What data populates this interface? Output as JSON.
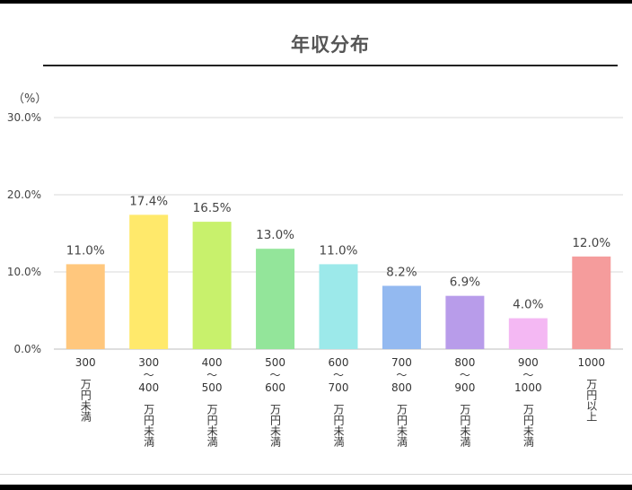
{
  "title": "年収分布",
  "unit_label": "（%）",
  "chart_data": {
    "type": "bar",
    "title": "年収分布",
    "ylabel": "（%）",
    "xlabel": "",
    "ylim": [
      0,
      30
    ],
    "yticks": [
      "0.0%",
      "10.0%",
      "20.0%",
      "30.0%"
    ],
    "grid": true,
    "categories": [
      [
        "300",
        "万円未満"
      ],
      [
        "300",
        "～",
        "400",
        "万円未満"
      ],
      [
        "400",
        "～",
        "500",
        "万円未満"
      ],
      [
        "500",
        "～",
        "600",
        "万円未満"
      ],
      [
        "600",
        "～",
        "700",
        "万円未満"
      ],
      [
        "700",
        "～",
        "800",
        "万円未満"
      ],
      [
        "800",
        "～",
        "900",
        "万円未満"
      ],
      [
        "900",
        "～",
        "1000",
        "万円未満"
      ],
      [
        "1000",
        "万円以上"
      ]
    ],
    "values": [
      11.0,
      17.4,
      16.5,
      13.0,
      11.0,
      8.2,
      6.9,
      4.0,
      12.0
    ],
    "data_labels": [
      "11.0%",
      "17.4%",
      "16.5%",
      "13.0%",
      "11.0%",
      "8.2%",
      "6.9%",
      "4.0%",
      "12.0%"
    ],
    "colors": [
      "#FFC77D",
      "#FFE96B",
      "#C8F16C",
      "#93E59A",
      "#9CE9EA",
      "#93B9F0",
      "#B89CEA",
      "#F4B8F3",
      "#F59C9C"
    ]
  }
}
